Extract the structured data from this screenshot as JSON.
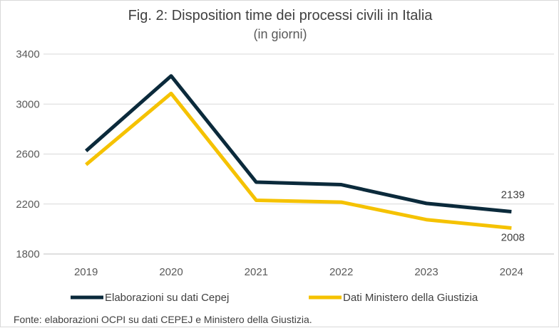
{
  "chart_data": {
    "type": "line",
    "title": "Fig. 2: Disposition time dei processi civili in Italia",
    "subtitle": "(in giorni)",
    "categories": [
      "2019",
      "2020",
      "2021",
      "2022",
      "2023",
      "2024"
    ],
    "series": [
      {
        "name": "Elaborazioni su dati Cepej",
        "values": [
          2625,
          3225,
          2375,
          2355,
          2205,
          2139
        ],
        "color": "#0b2a3b"
      },
      {
        "name": "Dati Ministero della Giustizia",
        "values": [
          2515,
          3085,
          2230,
          2215,
          2075,
          2008
        ],
        "color": "#f5c200"
      }
    ],
    "ylim": [
      1800,
      3400
    ],
    "yticks": [
      1800,
      2200,
      2600,
      3000,
      3400
    ],
    "grid": true,
    "legend_position": "bottom",
    "data_labels": [
      {
        "series": 0,
        "index": 5,
        "text": "2139"
      },
      {
        "series": 1,
        "index": 5,
        "text": "2008"
      }
    ],
    "source_note": "Fonte: elaborazioni OCPI su dati CEPEJ e Ministero della Giustizia."
  }
}
